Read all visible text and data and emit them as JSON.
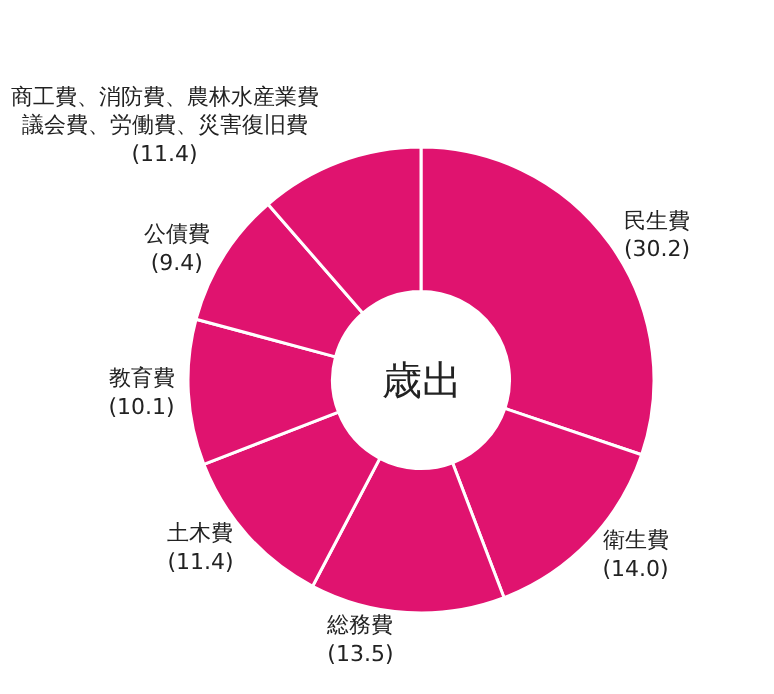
{
  "chart_data": {
    "type": "donut",
    "annotations": [
      "歳出"
    ],
    "categories": [
      "民生費",
      "衛生費",
      "総務費",
      "土木費",
      "教育費",
      "公債費",
      "商工費、消防費、農林水産業費議会費、労働費、災害復旧費"
    ],
    "values": [
      30.2,
      14.0,
      13.5,
      11.4,
      10.1,
      9.4,
      11.4
    ],
    "value_labels": [
      "(30.2)",
      "(14.0)",
      "(13.5)",
      "(11.4)",
      "(10.1)",
      "(9.4)",
      "(11.4)"
    ],
    "colors": [
      "#e0136f",
      "#e0136f",
      "#e0136f",
      "#e0136f",
      "#e0136f",
      "#e0136f",
      "#e0136f"
    ],
    "legend": false
  }
}
